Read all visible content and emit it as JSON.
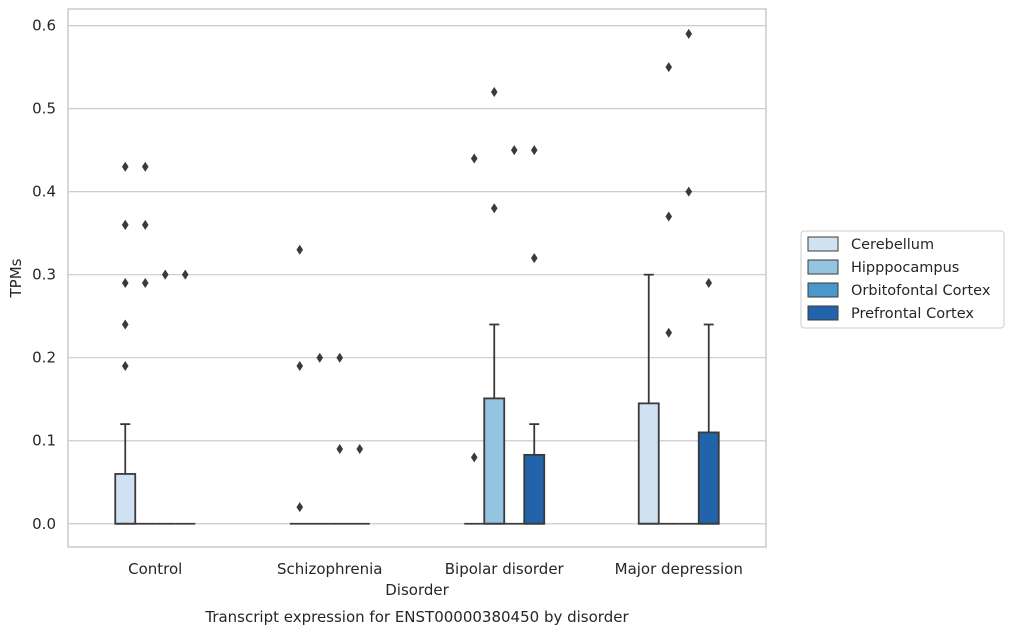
{
  "chart_data": {
    "type": "boxplot",
    "caption": "Transcript expression for ENST00000380450 by disorder",
    "xlabel": "Disorder",
    "ylabel": "TPMs",
    "ylim": [
      -0.028,
      0.62
    ],
    "yticks": [
      0.0,
      0.1,
      0.2,
      0.3,
      0.4,
      0.5,
      0.6
    ],
    "ytick_labels": [
      "0.0",
      "0.1",
      "0.2",
      "0.3",
      "0.4",
      "0.5",
      "0.6"
    ],
    "grid": "horizontal",
    "legend_position": "right",
    "categories": [
      "Control",
      "Schizophrenia",
      "Bipolar disorder",
      "Major depression"
    ],
    "series": [
      {
        "name": "Cerebellum",
        "color": "#d0e1f2",
        "boxes": [
          {
            "q1": 0,
            "median": 0,
            "q3": 0.06,
            "whisker_low": 0,
            "whisker_high": 0.12,
            "outliers": [
              0.19,
              0.24,
              0.29,
              0.36,
              0.36,
              0.43
            ]
          },
          {
            "q1": 0,
            "median": 0,
            "q3": 0,
            "whisker_low": 0,
            "whisker_high": 0,
            "outliers": [
              0.02,
              0.19,
              0.33
            ]
          },
          {
            "q1": 0,
            "median": 0,
            "q3": 0,
            "whisker_low": 0,
            "whisker_high": 0,
            "outliers": [
              0.08,
              0.44
            ]
          },
          {
            "q1": 0,
            "median": 0,
            "q3": 0.145,
            "whisker_low": 0,
            "whisker_high": 0.3,
            "outliers": []
          }
        ]
      },
      {
        "name": "Hipppocampus",
        "color": "#94c4df",
        "boxes": [
          {
            "q1": 0,
            "median": 0,
            "q3": 0,
            "whisker_low": 0,
            "whisker_high": 0,
            "outliers": [
              0.29,
              0.36,
              0.43
            ]
          },
          {
            "q1": 0,
            "median": 0,
            "q3": 0,
            "whisker_low": 0,
            "whisker_high": 0,
            "outliers": [
              0.2
            ]
          },
          {
            "q1": 0,
            "median": 0,
            "q3": 0.151,
            "whisker_low": 0,
            "whisker_high": 0.24,
            "outliers": [
              0.38,
              0.52
            ]
          },
          {
            "q1": 0,
            "median": 0,
            "q3": 0,
            "whisker_low": 0,
            "whisker_high": 0,
            "outliers": [
              0.23,
              0.37,
              0.55
            ]
          }
        ]
      },
      {
        "name": "Orbitofontal Cortex",
        "color": "#4a98c9",
        "boxes": [
          {
            "q1": 0,
            "median": 0,
            "q3": 0,
            "whisker_low": 0,
            "whisker_high": 0,
            "outliers": [
              0.3
            ]
          },
          {
            "q1": 0,
            "median": 0,
            "q3": 0,
            "whisker_low": 0,
            "whisker_high": 0,
            "outliers": [
              0.2,
              0.09
            ]
          },
          {
            "q1": 0,
            "median": 0,
            "q3": 0,
            "whisker_low": 0,
            "whisker_high": 0,
            "outliers": [
              0.45
            ]
          },
          {
            "q1": 0,
            "median": 0,
            "q3": 0,
            "whisker_low": 0,
            "whisker_high": 0,
            "outliers": [
              0.4,
              0.59
            ]
          }
        ]
      },
      {
        "name": "Prefrontal Cortex",
        "color": "#2164ab",
        "boxes": [
          {
            "q1": 0,
            "median": 0,
            "q3": 0,
            "whisker_low": 0,
            "whisker_high": 0,
            "outliers": [
              0.3
            ]
          },
          {
            "q1": 0,
            "median": 0,
            "q3": 0,
            "whisker_low": 0,
            "whisker_high": 0,
            "outliers": [
              0.09
            ]
          },
          {
            "q1": 0,
            "median": 0,
            "q3": 0.083,
            "whisker_low": 0,
            "whisker_high": 0.12,
            "outliers": [
              0.32,
              0.45
            ]
          },
          {
            "q1": 0,
            "median": 0,
            "q3": 0.11,
            "whisker_low": 0,
            "whisker_high": 0.24,
            "outliers": [
              0.29
            ]
          }
        ]
      }
    ]
  }
}
